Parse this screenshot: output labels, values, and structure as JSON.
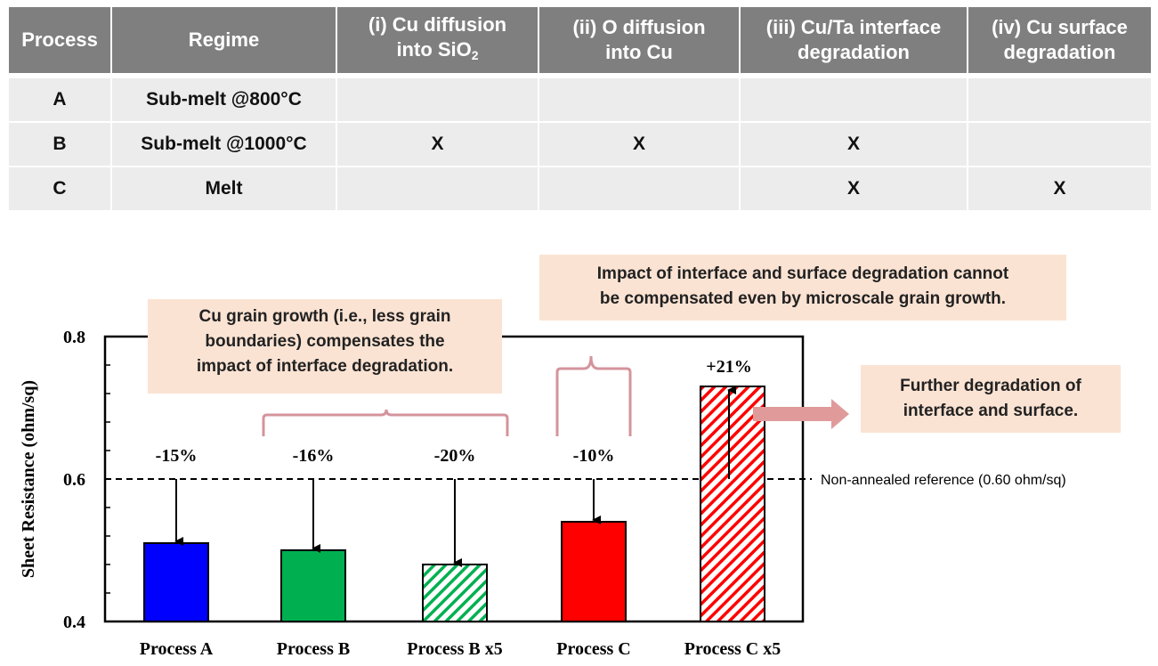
{
  "table": {
    "headers": {
      "process": "Process",
      "regime": "Regime",
      "i_line1": "(i) Cu diffusion",
      "i_line2_pre": "into SiO",
      "i_line2_sub": "2",
      "ii_line1": "(ii) O diffusion",
      "ii_line2": "into Cu",
      "iii_line1": "(iii) Cu/Ta interface",
      "iii_line2": "degradation",
      "iv_line1": "(iv) Cu surface",
      "iv_line2": "degradation"
    },
    "rows": [
      {
        "process": "A",
        "regime": "Sub-melt @800°C",
        "i": "",
        "ii": "",
        "iii": "",
        "iv": ""
      },
      {
        "process": "B",
        "regime": "Sub-melt @1000°C",
        "i": "X",
        "ii": "X",
        "iii": "X",
        "iv": ""
      },
      {
        "process": "C",
        "regime": "Melt",
        "i": "",
        "ii": "",
        "iii": "X",
        "iv": "X"
      }
    ]
  },
  "notes": {
    "grain_line1": "Cu grain growth (i.e., less grain",
    "grain_line2": "boundaries) compensates the",
    "grain_line3": "impact of interface degradation.",
    "impact_line1": "Impact of interface and surface degradation cannot",
    "impact_line2": "be compensated even by microscale grain growth.",
    "further_line1": "Further degradation of",
    "further_line2": "interface and surface."
  },
  "chart_data": {
    "type": "bar",
    "ylabel": "Sheet Resistance (ohm/sq)",
    "ylim": [
      0.4,
      0.8
    ],
    "yticks": [
      "0.4",
      "0.6",
      "0.8"
    ],
    "categories": [
      "Process A",
      "Process B",
      "Process B x5",
      "Process C",
      "Process C x5"
    ],
    "values": [
      0.51,
      0.5,
      0.48,
      0.54,
      0.73
    ],
    "changes": [
      "-15%",
      "-16%",
      "-20%",
      "-10%",
      "+21%"
    ],
    "colors": [
      "#0000ff",
      "#00b050",
      "#00b050",
      "#ff0000",
      "#ff0000"
    ],
    "hatched": [
      false,
      false,
      true,
      false,
      true
    ],
    "reference_value": 0.6,
    "reference_label": "Non-annealed reference (0.60 ohm/sq)",
    "bracket_color": "#d4949c",
    "arrow_color": "#e09a9a"
  }
}
